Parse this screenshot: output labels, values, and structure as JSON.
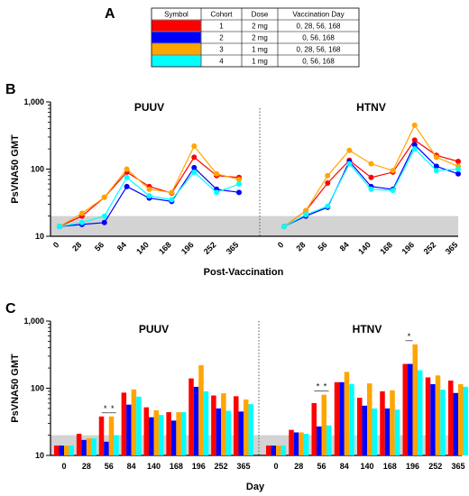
{
  "panels": {
    "a": "A",
    "b": "B",
    "c": "C"
  },
  "legend_table": {
    "headers": [
      "Symbol",
      "Cohort",
      "Dose",
      "Vaccination Day"
    ],
    "rows": [
      {
        "color": "#ff0000",
        "cohort": "1",
        "dose": "2 mg",
        "days": "0, 28, 56, 168"
      },
      {
        "color": "#0000ff",
        "cohort": "2",
        "dose": "2 mg",
        "days": "0, 56, 168"
      },
      {
        "color": "#ffa500",
        "cohort": "3",
        "dose": "1 mg",
        "days": "0, 28, 56, 168"
      },
      {
        "color": "#00ffff",
        "cohort": "4",
        "dose": "1 mg",
        "days": "0, 56, 168"
      }
    ]
  },
  "chart_data": [
    {
      "type": "line",
      "panel": "B",
      "subplots": [
        {
          "title": "PUUV",
          "categories": [
            "0",
            "28",
            "56",
            "84",
            "140",
            "168",
            "196",
            "252",
            "365"
          ],
          "series": [
            {
              "cohort": "1",
              "color": "#ff0000",
              "values": [
                14,
                20,
                38,
                90,
                55,
                44,
                150,
                80,
                75
              ]
            },
            {
              "cohort": "2",
              "color": "#0000ff",
              "values": [
                14,
                15,
                16,
                55,
                37,
                33,
                105,
                50,
                45
              ]
            },
            {
              "cohort": "3",
              "color": "#ffa500",
              "values": [
                14,
                22,
                38,
                100,
                50,
                45,
                220,
                85,
                70
              ]
            },
            {
              "cohort": "4",
              "color": "#00ffff",
              "values": [
                14,
                16,
                20,
                75,
                40,
                35,
                90,
                45,
                60
              ]
            }
          ]
        },
        {
          "title": "HTNV",
          "categories": [
            "0",
            "28",
            "56",
            "84",
            "140",
            "168",
            "196",
            "252",
            "365"
          ],
          "series": [
            {
              "cohort": "1",
              "color": "#ff0000",
              "values": [
                14,
                24,
                62,
                135,
                75,
                90,
                270,
                160,
                130
              ]
            },
            {
              "cohort": "2",
              "color": "#0000ff",
              "values": [
                14,
                20,
                27,
                130,
                55,
                50,
                230,
                110,
                85
              ]
            },
            {
              "cohort": "3",
              "color": "#ffa500",
              "values": [
                14,
                24,
                80,
                190,
                120,
                95,
                450,
                150,
                110
              ]
            },
            {
              "cohort": "4",
              "color": "#00ffff",
              "values": [
                14,
                21,
                28,
                120,
                50,
                48,
                200,
                95,
                100
              ]
            }
          ]
        }
      ],
      "ylabel": "PsVNA50 GMT",
      "xlabel": "Post-Vaccination",
      "yticks": [
        "10",
        "100",
        "1,000"
      ],
      "yscale": "log",
      "ylim": [
        10,
        1000
      ],
      "shaded_band": [
        10,
        20
      ]
    },
    {
      "type": "bar",
      "panel": "C",
      "subplots": [
        {
          "title": "PUUV",
          "categories": [
            "0",
            "28",
            "56",
            "84",
            "140",
            "168",
            "196",
            "252",
            "365"
          ],
          "series": [
            {
              "cohort": "1",
              "color": "#ff0000",
              "values": [
                14,
                21,
                38,
                86,
                52,
                44,
                140,
                78,
                76
              ]
            },
            {
              "cohort": "2",
              "color": "#0000ff",
              "values": [
                14,
                17,
                16,
                57,
                37,
                33,
                105,
                50,
                45
              ]
            },
            {
              "cohort": "3",
              "color": "#ffa500",
              "values": [
                14,
                18,
                38,
                96,
                47,
                44,
                220,
                84,
                68
              ]
            },
            {
              "cohort": "4",
              "color": "#00ffff",
              "values": [
                14,
                18,
                20,
                75,
                40,
                44,
                90,
                46,
                58
              ]
            }
          ],
          "annotations": [
            {
              "category": "56",
              "text": "*"
            },
            {
              "category": "56",
              "text": "*"
            }
          ]
        },
        {
          "title": "HTNV",
          "categories": [
            "0",
            "28",
            "56",
            "84",
            "140",
            "168",
            "196",
            "252",
            "365"
          ],
          "series": [
            {
              "cohort": "1",
              "color": "#ff0000",
              "values": [
                14,
                24,
                60,
                123,
                72,
                90,
                230,
                145,
                130
              ]
            },
            {
              "cohort": "2",
              "color": "#0000ff",
              "values": [
                14,
                22,
                27,
                123,
                55,
                50,
                230,
                115,
                85
              ]
            },
            {
              "cohort": "3",
              "color": "#ffa500",
              "values": [
                14,
                22,
                80,
                175,
                118,
                93,
                450,
                155,
                115
              ]
            },
            {
              "cohort": "4",
              "color": "#00ffff",
              "values": [
                14,
                21,
                28,
                115,
                50,
                48,
                185,
                95,
                105
              ]
            }
          ],
          "annotations": [
            {
              "category": "56",
              "text": "*"
            },
            {
              "category": "56",
              "text": "*"
            },
            {
              "category": "196",
              "text": "*"
            }
          ]
        }
      ],
      "ylabel": "PsVNA50 GMT",
      "xlabel": "Day",
      "yticks": [
        "10",
        "100",
        "1,000"
      ],
      "yscale": "log",
      "ylim": [
        10,
        1000
      ],
      "shaded_band": [
        10,
        20
      ]
    }
  ]
}
